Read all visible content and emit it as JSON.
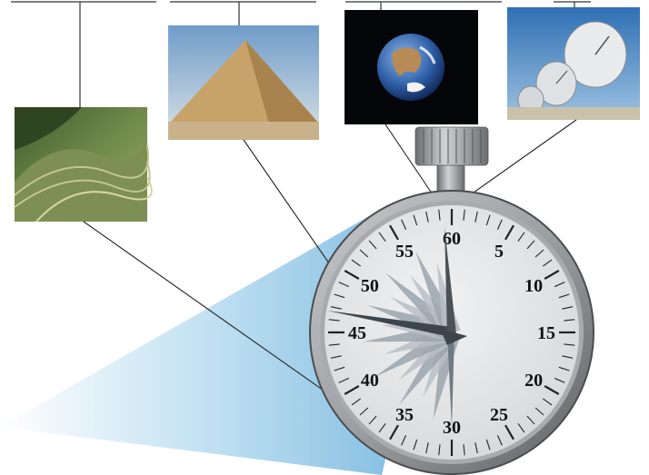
{
  "photos": [
    {
      "id": "rice-terraces",
      "subject": "Rice terraces on a green mountainside"
    },
    {
      "id": "pyramid",
      "subject": "Great Pyramid in the desert under a blue sky"
    },
    {
      "id": "earth",
      "subject": "Earth seen from space"
    },
    {
      "id": "radio-telescopes",
      "subject": "Radio telescope dishes"
    }
  ],
  "stopwatch": {
    "dial_numbers": [
      "60",
      "5",
      "10",
      "15",
      "20",
      "25",
      "30",
      "35",
      "40",
      "45",
      "50",
      "55"
    ]
  },
  "colors": {
    "wedge_blue": "#8cc4e4",
    "case_gray": "#8a8c90",
    "face_light": "#e4e6e8",
    "needle_dark": "#4a5258",
    "star_gray": "#9aa4ac"
  }
}
